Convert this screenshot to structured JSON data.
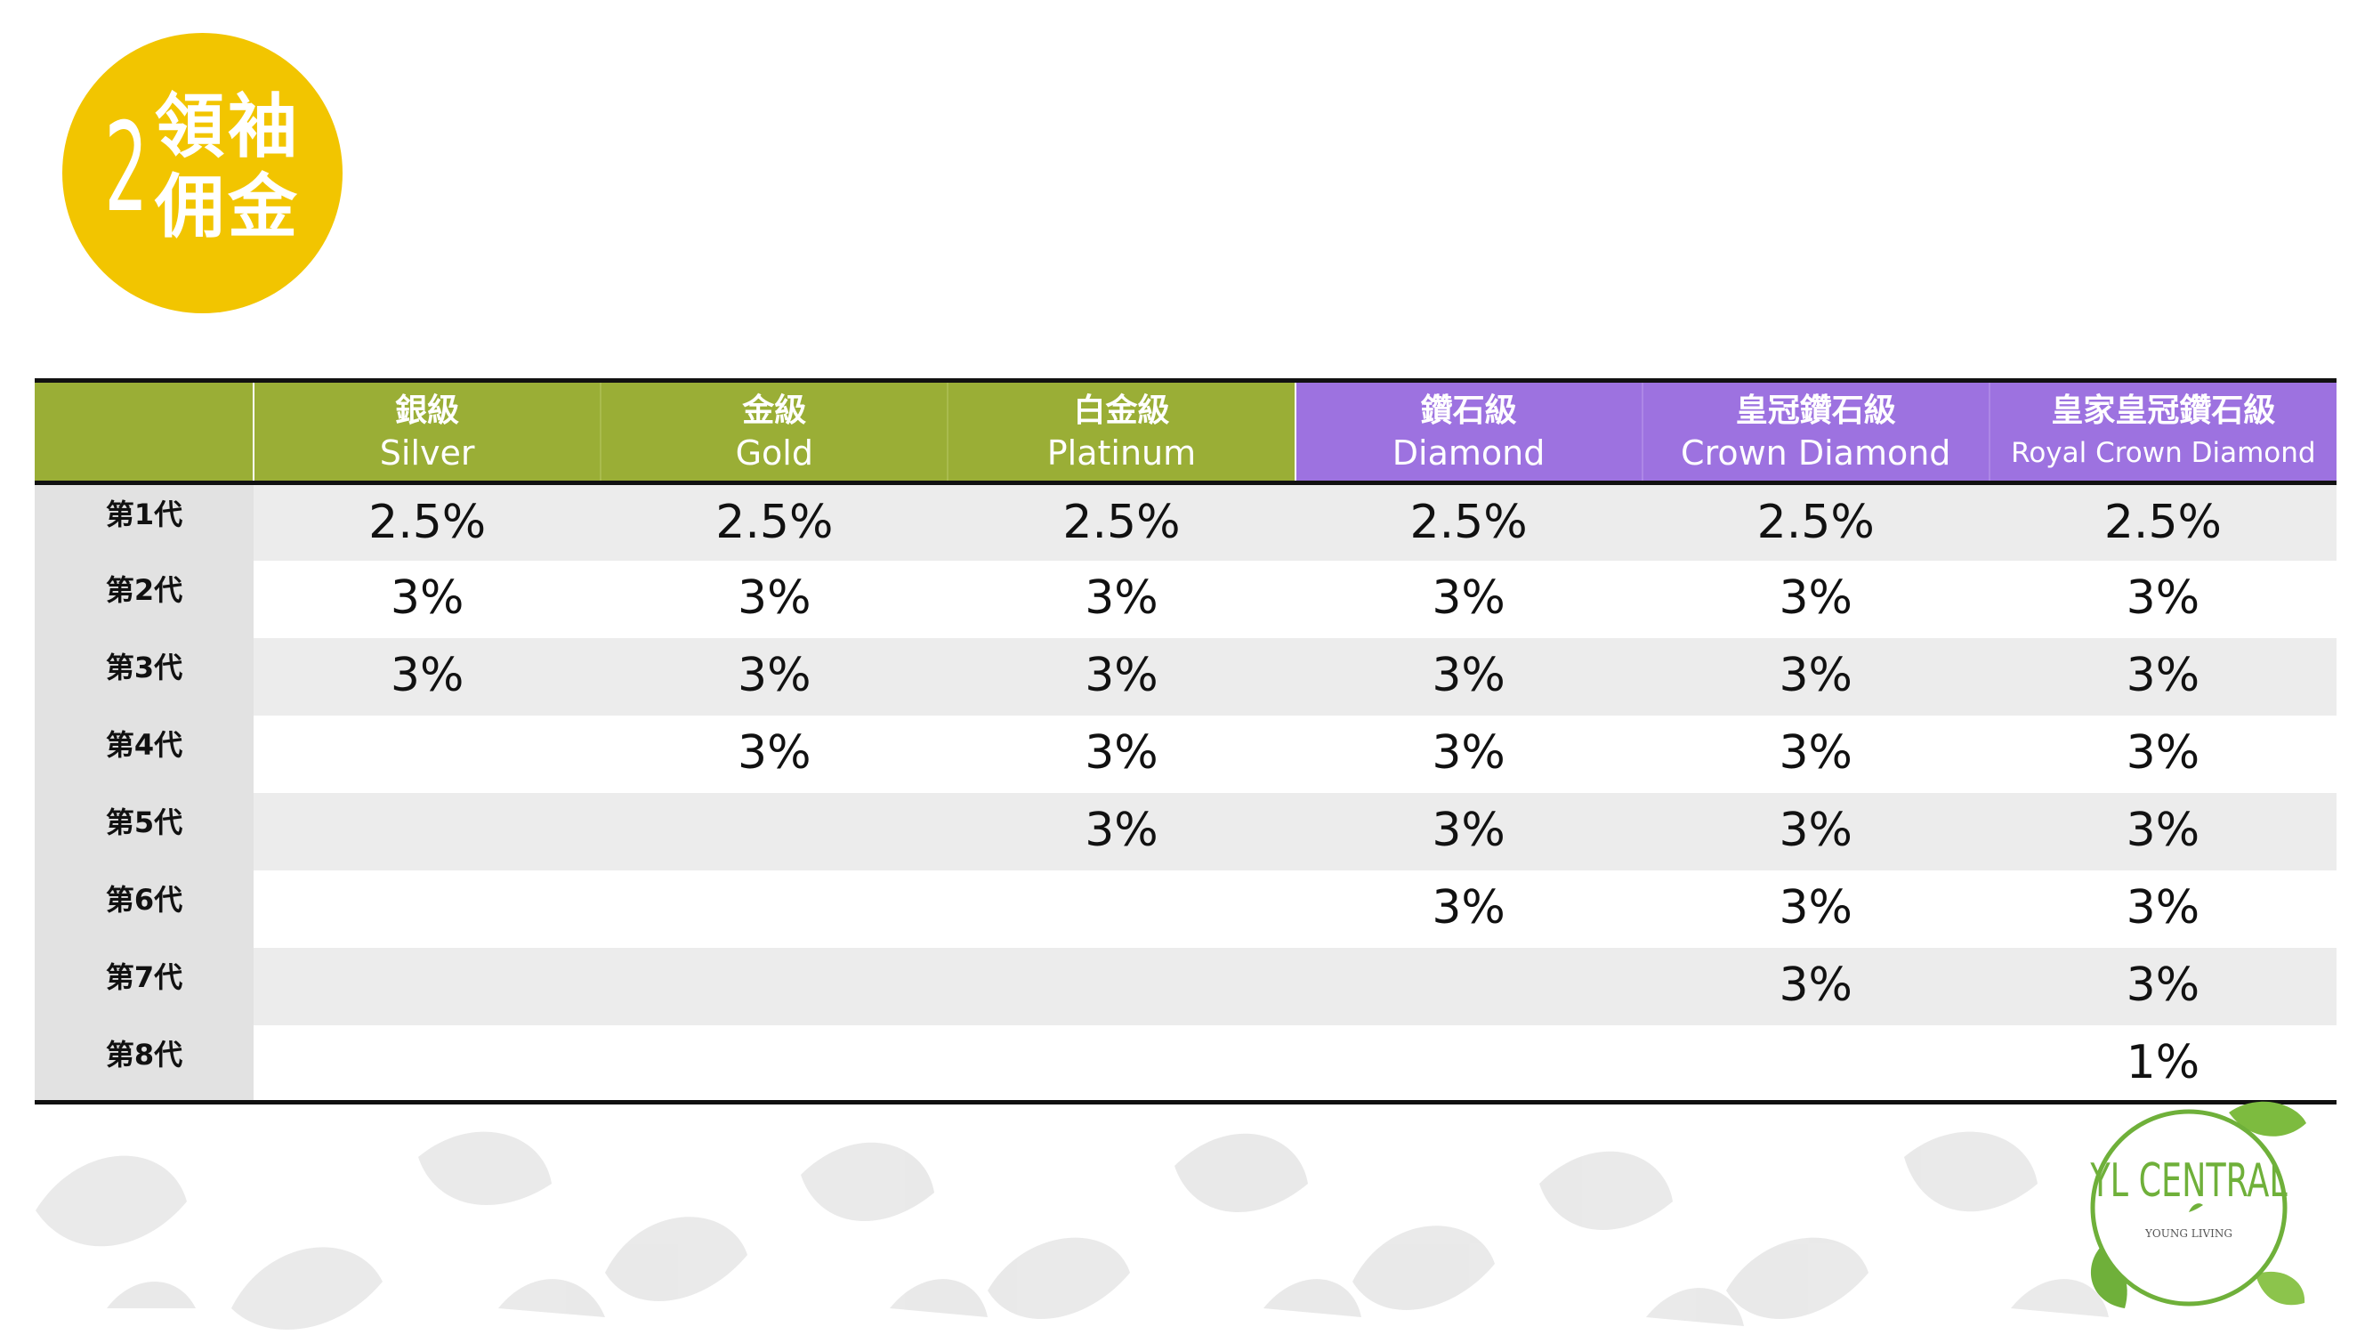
{
  "badge": {
    "number": "2",
    "line1": "領袖",
    "line2": "佣金"
  },
  "table": {
    "columns": [
      {
        "zh": "銀級",
        "en": "Silver",
        "tier": "green"
      },
      {
        "zh": "金級",
        "en": "Gold",
        "tier": "green"
      },
      {
        "zh": "白金級",
        "en": "Platinum",
        "tier": "green"
      },
      {
        "zh": "鑽石級",
        "en": "Diamond",
        "tier": "purple"
      },
      {
        "zh": "皇冠鑽石級",
        "en": "Crown Diamond",
        "tier": "purple"
      },
      {
        "zh": "皇家皇冠鑽石級",
        "en": "Royal Crown Diamond",
        "tier": "purple"
      }
    ],
    "rows": [
      {
        "gen": "第1代",
        "cells": [
          "2.5%",
          "2.5%",
          "2.5%",
          "2.5%",
          "2.5%",
          "2.5%"
        ]
      },
      {
        "gen": "第2代",
        "cells": [
          "3%",
          "3%",
          "3%",
          "3%",
          "3%",
          "3%"
        ]
      },
      {
        "gen": "第3代",
        "cells": [
          "3%",
          "3%",
          "3%",
          "3%",
          "3%",
          "3%"
        ]
      },
      {
        "gen": "第4代",
        "cells": [
          "",
          "3%",
          "3%",
          "3%",
          "3%",
          "3%"
        ]
      },
      {
        "gen": "第5代",
        "cells": [
          "",
          "",
          "3%",
          "3%",
          "3%",
          "3%"
        ]
      },
      {
        "gen": "第6代",
        "cells": [
          "",
          "",
          "",
          "3%",
          "3%",
          "3%"
        ]
      },
      {
        "gen": "第7代",
        "cells": [
          "",
          "",
          "",
          "",
          "3%",
          "3%"
        ]
      },
      {
        "gen": "第8代",
        "cells": [
          "",
          "",
          "",
          "",
          "",
          "1%"
        ]
      }
    ]
  },
  "logo": {
    "name": "YL CENTRAL",
    "sub": "YOUNG LIVING"
  },
  "colors": {
    "badge": "#f2c500",
    "header_green": "#9aae36",
    "header_purple": "#9d72e0",
    "logo_green": "#6fb03a"
  }
}
